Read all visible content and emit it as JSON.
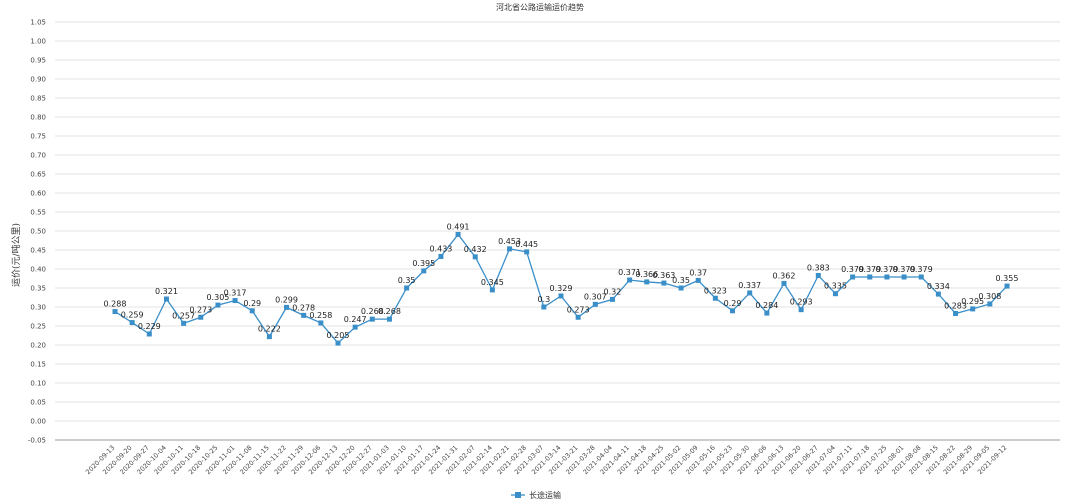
{
  "chart_data": {
    "type": "line",
    "title": "河北省公路运输运价趋势",
    "ylabel": "运价(元/吨公里)",
    "xlabel": "",
    "ylim": [
      -0.05,
      1.05
    ],
    "ytick_step": 0.05,
    "grid": true,
    "legend_position": "bottom",
    "categories": [
      "2020-09-13",
      "2020-09-20",
      "2020-09-27",
      "2020-10-04",
      "2020-10-11",
      "2020-10-18",
      "2020-10-25",
      "2020-11-01",
      "2020-11-08",
      "2020-11-15",
      "2020-11-22",
      "2020-11-29",
      "2020-12-06",
      "2020-12-13",
      "2020-12-20",
      "2020-12-27",
      "2021-01-03",
      "2021-01-10",
      "2021-01-17",
      "2021-01-24",
      "2021-01-31",
      "2021-02-07",
      "2021-02-14",
      "2021-02-21",
      "2021-02-28",
      "2021-03-07",
      "2021-03-14",
      "2021-03-21",
      "2021-03-28",
      "2021-04-04",
      "2021-04-11",
      "2021-04-18",
      "2021-04-25",
      "2021-05-02",
      "2021-05-09",
      "2021-05-16",
      "2021-05-23",
      "2021-05-30",
      "2021-06-06",
      "2021-06-13",
      "2021-06-20",
      "2021-06-27",
      "2021-07-04",
      "2021-07-11",
      "2021-07-18",
      "2021-07-25",
      "2021-08-01",
      "2021-08-08",
      "2021-08-15",
      "2021-08-22",
      "2021-08-29",
      "2021-09-05",
      "2021-09-12"
    ],
    "series": [
      {
        "name": "长途运输",
        "color": "#3a8fc9",
        "values": [
          0.288,
          0.259,
          0.229,
          0.321,
          0.257,
          0.273,
          0.305,
          0.317,
          0.29,
          0.222,
          0.299,
          0.278,
          0.258,
          0.205,
          0.247,
          0.268,
          0.268,
          0.35,
          0.395,
          0.433,
          0.491,
          0.432,
          0.345,
          0.453,
          0.445,
          0.3,
          0.329,
          0.273,
          0.307,
          0.32,
          0.371,
          0.366,
          0.363,
          0.35,
          0.37,
          0.323,
          0.29,
          0.337,
          0.284,
          0.362,
          0.293,
          0.383,
          0.335,
          0.379,
          0.379,
          0.379,
          0.379,
          0.379,
          0.334,
          0.283,
          0.295,
          0.308,
          0.355
        ],
        "labels": [
          "0.288",
          "0.259",
          "0.229",
          "0.321",
          "0.257",
          "0.273",
          "0.305",
          "0.317",
          "0.29",
          "0.222",
          "0.299",
          "0.278",
          "0.258",
          "0.205",
          "0.247",
          "0.268",
          "0.268",
          "0.35",
          "0.395",
          "0.433",
          "0.491",
          "0.432",
          "0.345",
          "0.453",
          "0.445",
          "0.3",
          "0.329",
          "0.273",
          "0.307",
          "0.32",
          "0.371",
          "0.366",
          "0.363",
          "0.35",
          "0.37",
          "0.323",
          "0.29",
          "0.337",
          "0.284",
          "0.362",
          "0.293",
          "0.383",
          "0.335",
          "0.379",
          "0.379",
          "0.379",
          "0.379",
          "0.379",
          "0.334",
          "0.283",
          "0.295",
          "0.308",
          "0.355"
        ]
      }
    ]
  }
}
